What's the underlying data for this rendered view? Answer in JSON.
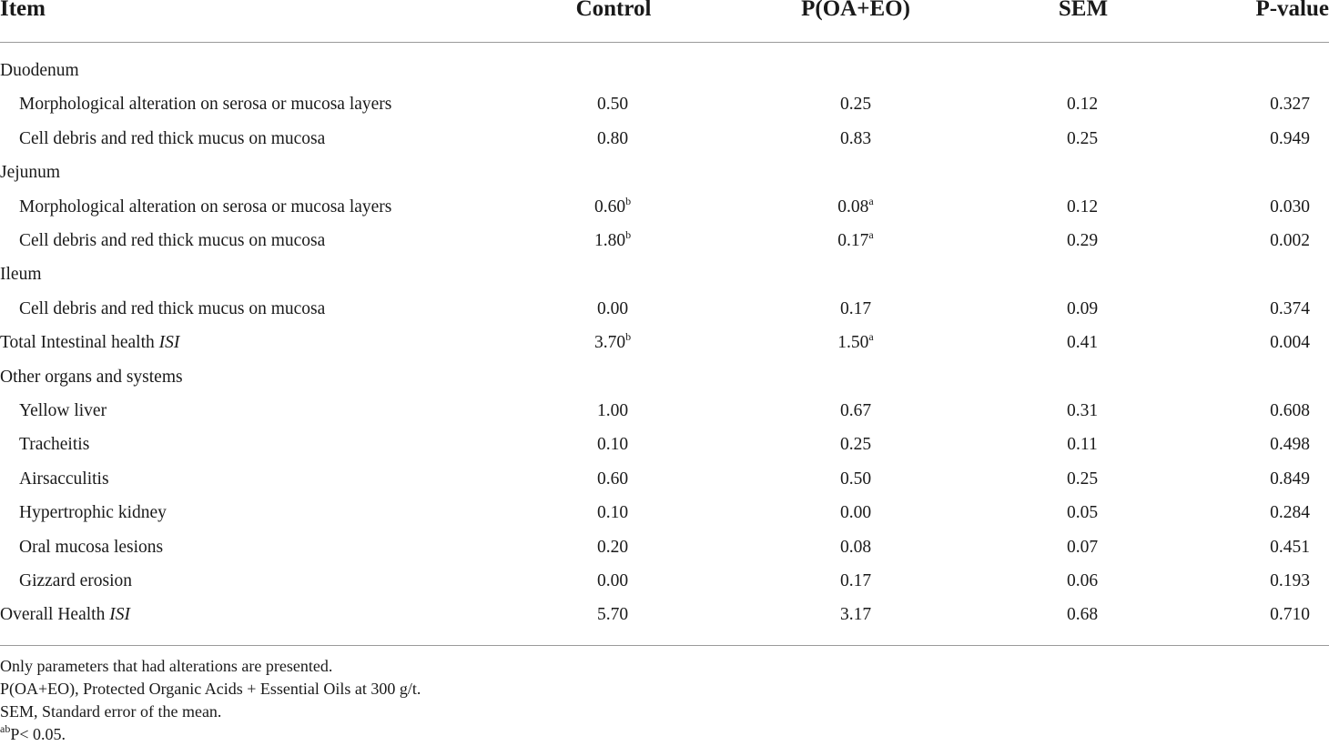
{
  "table": {
    "headers": [
      "Item",
      "Control",
      "P(OA+EO)",
      "SEM",
      "P-value"
    ],
    "rows": [
      {
        "item": "Duodenum",
        "indent": false,
        "italic": "",
        "control": "",
        "control_sup": "",
        "treated": "",
        "treated_sup": "",
        "sem": "",
        "p": ""
      },
      {
        "item": "Morphological alteration on serosa or mucosa layers",
        "indent": true,
        "italic": "",
        "control": "0.50",
        "control_sup": "",
        "treated": "0.25",
        "treated_sup": "",
        "sem": "0.12",
        "p": "0.327"
      },
      {
        "item": "Cell debris and red thick mucus on mucosa",
        "indent": true,
        "italic": "",
        "control": "0.80",
        "control_sup": "",
        "treated": "0.83",
        "treated_sup": "",
        "sem": "0.25",
        "p": "0.949"
      },
      {
        "item": "Jejunum",
        "indent": false,
        "italic": "",
        "control": "",
        "control_sup": "",
        "treated": "",
        "treated_sup": "",
        "sem": "",
        "p": ""
      },
      {
        "item": "Morphological alteration on serosa or mucosa layers",
        "indent": true,
        "italic": "",
        "control": "0.60",
        "control_sup": "b",
        "treated": "0.08",
        "treated_sup": "a",
        "sem": "0.12",
        "p": "0.030"
      },
      {
        "item": "Cell debris and red thick mucus on mucosa",
        "indent": true,
        "italic": "",
        "control": "1.80",
        "control_sup": "b",
        "treated": "0.17",
        "treated_sup": "a",
        "sem": "0.29",
        "p": "0.002"
      },
      {
        "item": "Ileum",
        "indent": false,
        "italic": "",
        "control": "",
        "control_sup": "",
        "treated": "",
        "treated_sup": "",
        "sem": "",
        "p": ""
      },
      {
        "item": "Cell debris and red thick mucus on mucosa",
        "indent": true,
        "italic": "",
        "control": "0.00",
        "control_sup": "",
        "treated": "0.17",
        "treated_sup": "",
        "sem": "0.09",
        "p": "0.374"
      },
      {
        "item": "Total Intestinal health ",
        "indent": false,
        "italic": "ISI",
        "control": "3.70",
        "control_sup": "b",
        "treated": "1.50",
        "treated_sup": "a",
        "sem": "0.41",
        "p": "0.004"
      },
      {
        "item": "Other organs and systems",
        "indent": false,
        "italic": "",
        "control": "",
        "control_sup": "",
        "treated": "",
        "treated_sup": "",
        "sem": "",
        "p": ""
      },
      {
        "item": "Yellow liver",
        "indent": true,
        "italic": "",
        "control": "1.00",
        "control_sup": "",
        "treated": "0.67",
        "treated_sup": "",
        "sem": "0.31",
        "p": "0.608"
      },
      {
        "item": "Tracheitis",
        "indent": true,
        "italic": "",
        "control": "0.10",
        "control_sup": "",
        "treated": "0.25",
        "treated_sup": "",
        "sem": "0.11",
        "p": "0.498"
      },
      {
        "item": "Airsacculitis",
        "indent": true,
        "italic": "",
        "control": "0.60",
        "control_sup": "",
        "treated": "0.50",
        "treated_sup": "",
        "sem": "0.25",
        "p": "0.849"
      },
      {
        "item": "Hypertrophic kidney",
        "indent": true,
        "italic": "",
        "control": "0.10",
        "control_sup": "",
        "treated": "0.00",
        "treated_sup": "",
        "sem": "0.05",
        "p": "0.284"
      },
      {
        "item": "Oral mucosa lesions",
        "indent": true,
        "italic": "",
        "control": "0.20",
        "control_sup": "",
        "treated": "0.08",
        "treated_sup": "",
        "sem": "0.07",
        "p": "0.451"
      },
      {
        "item": "Gizzard erosion",
        "indent": true,
        "italic": "",
        "control": "0.00",
        "control_sup": "",
        "treated": "0.17",
        "treated_sup": "",
        "sem": "0.06",
        "p": "0.193"
      },
      {
        "item": "Overall Health ",
        "indent": false,
        "italic": "ISI",
        "control": "5.70",
        "control_sup": "",
        "treated": "3.17",
        "treated_sup": "",
        "sem": "0.68",
        "p": "0.710"
      }
    ]
  },
  "footnotes": {
    "line1": "Only parameters that had alterations are presented.",
    "line2": "P(OA+EO), Protected Organic Acids + Essential Oils at 300 g/t.",
    "line3": "SEM, Standard error of the mean.",
    "line4_sup": "ab",
    "line4": "P< 0.05."
  },
  "colors": {
    "text": "#1a1a1a",
    "rule": "#9a9a9a"
  }
}
